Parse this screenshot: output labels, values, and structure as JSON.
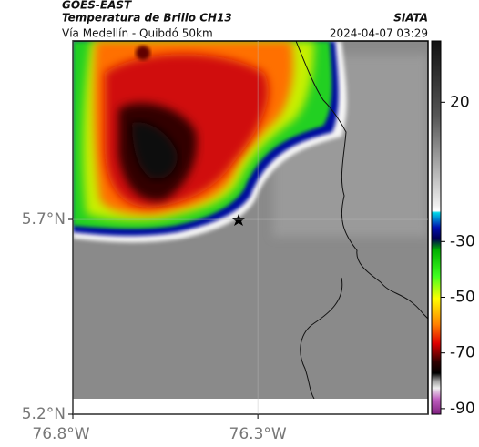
{
  "header": {
    "title": "GOES-EAST",
    "subtitle": "Temperatura de Brillo CH13",
    "route": "Vía Medellín - Quibdó 50km",
    "source": "SIATA",
    "timestamp": "2024-04-07 03:29"
  },
  "map": {
    "xlim": [
      -76.8,
      -75.84
    ],
    "ylim": [
      5.2,
      6.158
    ],
    "xticks": [
      {
        "value": -76.8,
        "label": "76.8°W"
      },
      {
        "value": -76.3,
        "label": "76.3°W"
      }
    ],
    "yticks": [
      {
        "value": 5.7,
        "label": "5.7°N"
      },
      {
        "value": 5.2,
        "label": "5.2°N"
      }
    ]
  },
  "colorbar": {
    "lim": [
      -92,
      42
    ],
    "ticks": [
      20,
      -30,
      -50,
      -70,
      -90
    ]
  }
}
